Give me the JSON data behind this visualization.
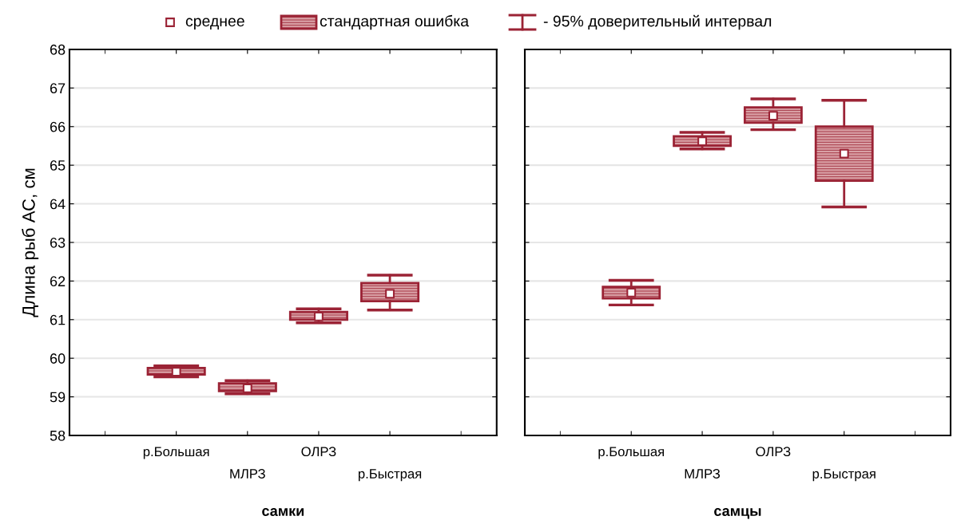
{
  "chart_data": [
    {
      "type": "box",
      "ylabel": "Длина рыб АС, см",
      "xlabel": "самки",
      "categories": [
        "р.Большая",
        "МЛРЗ",
        "ОЛРЗ",
        "р.Быстрая"
      ],
      "ylim": [
        58,
        68
      ],
      "yticks": [
        58,
        59,
        60,
        61,
        62,
        63,
        64,
        65,
        66,
        67,
        68
      ],
      "grid": "y",
      "marker": "square",
      "annotations": [
        "среднее",
        "стандартная ошибка",
        "- 95% доверительный интервал"
      ],
      "series": [
        {
          "color": "#9b2335",
          "boxes": [
            {
              "low": 59.52,
              "q1": 59.58,
              "q3": 59.75,
              "high": 59.8,
              "mean": 59.65
            },
            {
              "low": 59.08,
              "q1": 59.15,
              "q3": 59.35,
              "high": 59.42,
              "mean": 59.22
            },
            {
              "low": 60.92,
              "q1": 61.0,
              "q3": 61.2,
              "high": 61.28,
              "mean": 61.08
            },
            {
              "low": 61.25,
              "q1": 61.48,
              "q3": 61.95,
              "high": 62.15,
              "mean": 61.67
            }
          ]
        }
      ]
    },
    {
      "type": "box",
      "xlabel": "самцы",
      "categories": [
        "р.Большая",
        "МЛРЗ",
        "ОЛРЗ",
        "р.Быстрая"
      ],
      "ylim": [
        58,
        68
      ],
      "yticks": [
        58,
        59,
        60,
        61,
        62,
        63,
        64,
        65,
        66,
        67,
        68
      ],
      "grid": "y",
      "tick_labels": "x",
      "marker": "square",
      "series": [
        {
          "color": "#9b2335",
          "boxes": [
            {
              "low": 61.38,
              "q1": 61.55,
              "q3": 61.85,
              "high": 62.02,
              "mean": 61.7
            },
            {
              "low": 65.42,
              "q1": 65.5,
              "q3": 65.75,
              "high": 65.85,
              "mean": 65.62
            },
            {
              "low": 65.92,
              "q1": 66.1,
              "q3": 66.5,
              "high": 66.72,
              "mean": 66.28
            },
            {
              "low": 63.92,
              "q1": 64.6,
              "q3": 66.0,
              "high": 66.68,
              "mean": 65.3
            }
          ]
        }
      ]
    }
  ]
}
